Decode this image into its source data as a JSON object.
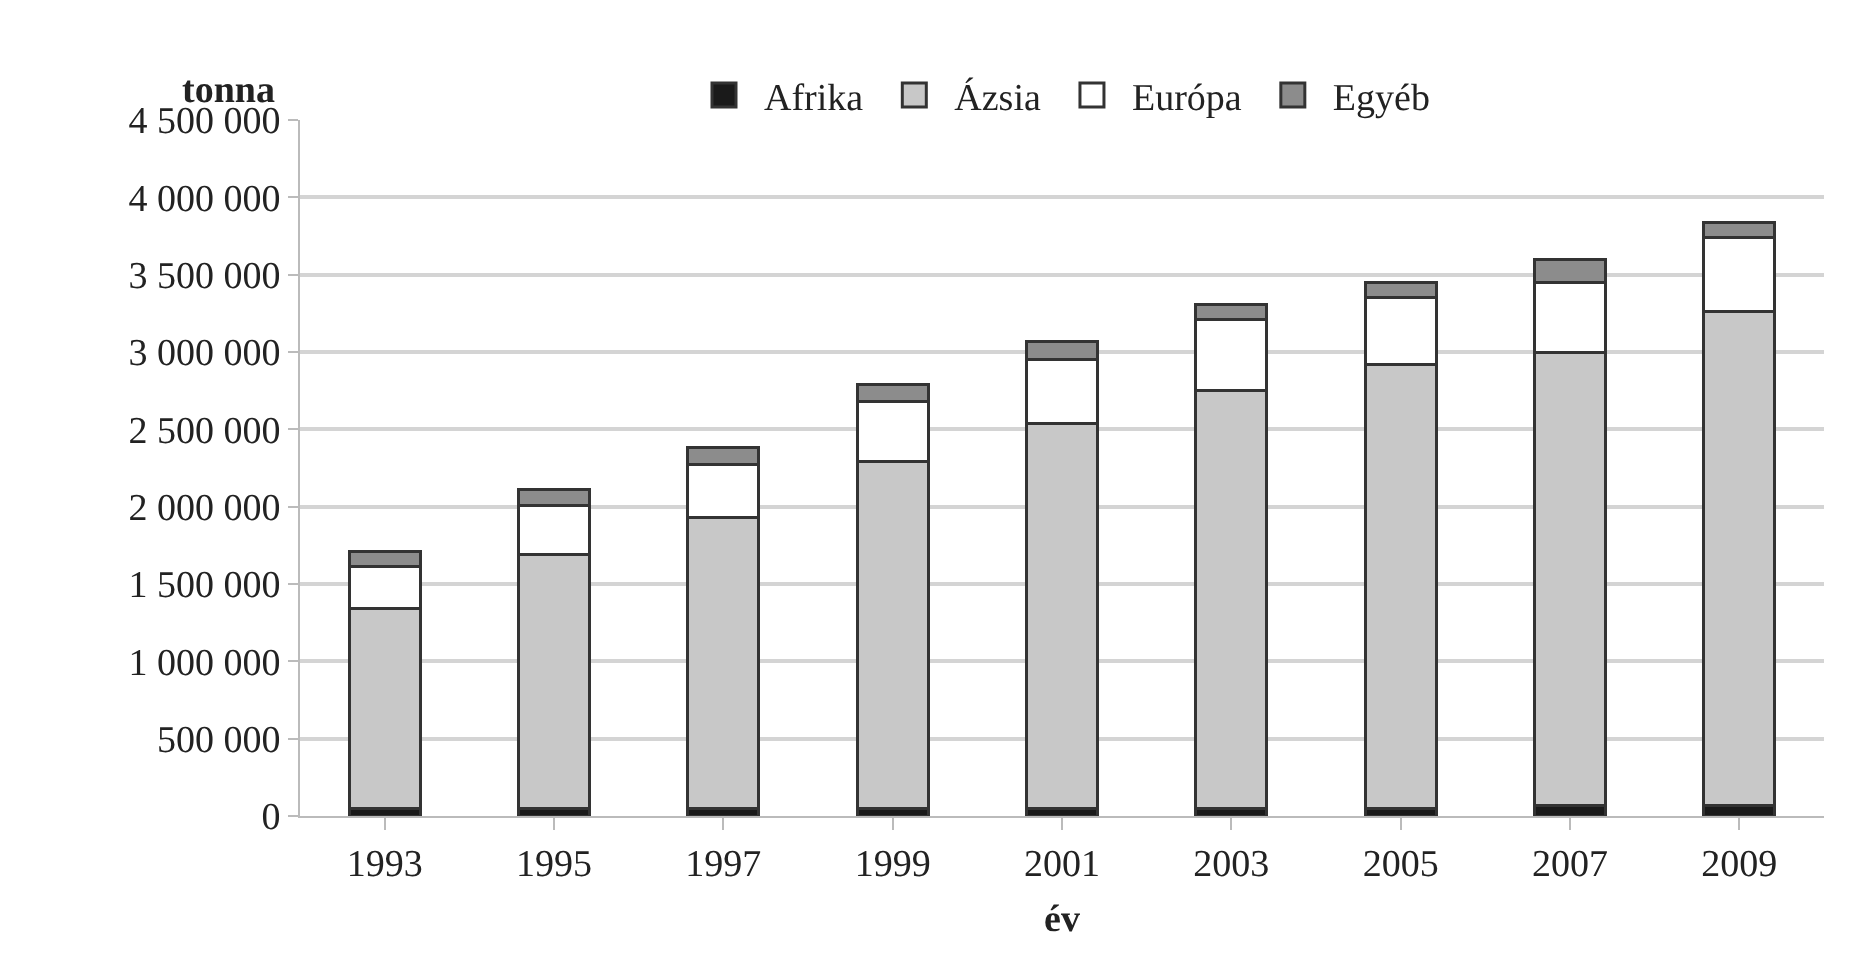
{
  "chart_data": {
    "type": "bar",
    "stacked": true,
    "xlabel": "év",
    "ylabel": "tonna",
    "categories": [
      "1993",
      "1995",
      "1997",
      "1999",
      "2001",
      "2003",
      "2005",
      "2007",
      "2009"
    ],
    "series": [
      {
        "name": "Afrika",
        "color": "#1a1a1a",
        "values": [
          50000,
          50000,
          50000,
          50000,
          50000,
          50000,
          50000,
          70000,
          70000
        ]
      },
      {
        "name": "Ázsia",
        "color": "#c8c8c8",
        "values": [
          1290000,
          1640000,
          1880000,
          2240000,
          2490000,
          2700000,
          2870000,
          2930000,
          3190000
        ]
      },
      {
        "name": "Európa",
        "color": "#ffffff",
        "values": [
          270000,
          320000,
          340000,
          390000,
          410000,
          460000,
          430000,
          450000,
          480000
        ]
      },
      {
        "name": "Egyéb",
        "color": "#8c8c8c",
        "values": [
          100000,
          100000,
          110000,
          110000,
          120000,
          100000,
          100000,
          150000,
          100000
        ]
      }
    ],
    "ylim": [
      0,
      4500000
    ],
    "yticks": [
      {
        "value": 0,
        "label": "0"
      },
      {
        "value": 500000,
        "label": "500 000"
      },
      {
        "value": 1000000,
        "label": "1 000 000"
      },
      {
        "value": 1500000,
        "label": "1 500 000"
      },
      {
        "value": 2000000,
        "label": "2 000 000"
      },
      {
        "value": 2500000,
        "label": "2 500 000"
      },
      {
        "value": 3000000,
        "label": "3 000 000"
      },
      {
        "value": 3500000,
        "label": "3 500 000"
      },
      {
        "value": 4000000,
        "label": "4 000 000"
      },
      {
        "value": 4500000,
        "label": "4 500 000"
      }
    ],
    "grid": "y",
    "legend": "top"
  }
}
